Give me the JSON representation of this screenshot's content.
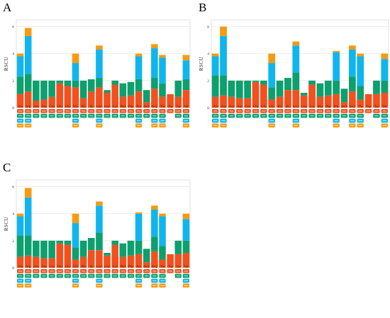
{
  "figure": {
    "colors": {
      "orange": "#f49b13",
      "cyan": "#10b5ee",
      "green": "#0e9f6e",
      "red": "#f2501e",
      "grid": "#e3e3e3",
      "background": "#ffffff"
    }
  },
  "chart_data": [
    {
      "type": "bar",
      "panel": "A",
      "ylabel": "RSCU",
      "ylim": [
        0,
        6.5
      ],
      "yticks": [
        0,
        2,
        4,
        6
      ],
      "grid": true,
      "stacked": true,
      "categories": [
        "Ala",
        "Arg",
        "Asn",
        "Asp",
        "Cys",
        "Gln",
        "Glu",
        "Gly",
        "His",
        "Ile",
        "Leu1",
        "Leu2",
        "Lys",
        "Met",
        "Phe",
        "Pro",
        "Ser1",
        "Ser2",
        "Thr",
        "Trp",
        "Tyr",
        "Val"
      ],
      "series": [
        {
          "color": "red",
          "values": [
            1.0,
            1.2,
            0.5,
            0.6,
            0.8,
            1.8,
            1.6,
            1.5,
            0.7,
            1.2,
            1.5,
            1.1,
            1.7,
            0.8,
            0.9,
            1.2,
            0.4,
            1.4,
            0.8,
            1.0,
            0.8,
            1.3
          ]
        },
        {
          "color": "green",
          "values": [
            1.3,
            1.3,
            1.5,
            1.4,
            1.2,
            0.2,
            0.4,
            0.5,
            1.3,
            0.9,
            0.7,
            0.2,
            0.3,
            1.0,
            1.0,
            0.9,
            0.9,
            0.8,
            1.0,
            0.0,
            1.2,
            0.8
          ]
        },
        {
          "color": "cyan",
          "values": [
            1.5,
            2.8,
            0.0,
            0.0,
            0.0,
            0.0,
            0.0,
            1.3,
            0.0,
            0.0,
            2.1,
            0.0,
            0.0,
            0.0,
            0.0,
            1.7,
            0.0,
            2.2,
            1.9,
            0.0,
            0.0,
            1.4
          ]
        },
        {
          "color": "orange",
          "values": [
            0.2,
            0.6,
            0.0,
            0.0,
            0.0,
            0.0,
            0.0,
            0.7,
            0.0,
            0.0,
            0.3,
            0.0,
            0.0,
            0.0,
            0.0,
            0.2,
            0.0,
            0.3,
            0.2,
            0.0,
            0.0,
            0.4
          ]
        }
      ]
    },
    {
      "type": "bar",
      "panel": "B",
      "ylabel": "RSCU",
      "ylim": [
        0,
        6.5
      ],
      "yticks": [
        0,
        2,
        4,
        6
      ],
      "grid": true,
      "stacked": true,
      "categories": [
        "Ala",
        "Arg",
        "Asn",
        "Asp",
        "Cys",
        "Gln",
        "Glu",
        "Gly",
        "His",
        "Ile",
        "Leu1",
        "Leu2",
        "Lys",
        "Met",
        "Phe",
        "Pro",
        "Ser1",
        "Ser2",
        "Thr",
        "Trp",
        "Tyr",
        "Val"
      ],
      "series": [
        {
          "color": "red",
          "values": [
            0.8,
            0.9,
            0.8,
            0.7,
            0.7,
            1.9,
            1.7,
            0.6,
            0.8,
            1.3,
            1.3,
            0.9,
            1.7,
            0.8,
            0.9,
            1.0,
            0.4,
            1.2,
            0.6,
            1.0,
            1.0,
            1.1
          ]
        },
        {
          "color": "green",
          "values": [
            1.6,
            1.5,
            1.2,
            1.3,
            1.3,
            0.1,
            0.3,
            0.9,
            1.2,
            0.9,
            1.3,
            0.2,
            0.3,
            1.0,
            1.1,
            1.0,
            1.0,
            1.1,
            1.0,
            0.0,
            1.0,
            0.9
          ]
        },
        {
          "color": "cyan",
          "values": [
            1.4,
            2.9,
            0.0,
            0.0,
            0.0,
            0.0,
            0.0,
            1.8,
            0.0,
            0.0,
            2.0,
            0.0,
            0.0,
            0.0,
            0.0,
            2.1,
            0.0,
            2.0,
            2.2,
            0.0,
            0.0,
            1.6
          ]
        },
        {
          "color": "orange",
          "values": [
            0.2,
            0.7,
            0.0,
            0.0,
            0.0,
            0.0,
            0.0,
            0.7,
            0.0,
            0.0,
            0.3,
            0.0,
            0.0,
            0.0,
            0.0,
            0.1,
            0.0,
            0.3,
            0.2,
            0.0,
            0.0,
            0.4
          ]
        }
      ]
    },
    {
      "type": "bar",
      "panel": "C",
      "ylabel": "RSCU",
      "ylim": [
        0,
        6.5
      ],
      "yticks": [
        0,
        2,
        4,
        6
      ],
      "grid": true,
      "stacked": true,
      "categories": [
        "Ala",
        "Arg",
        "Asn",
        "Asp",
        "Cys",
        "Gln",
        "Glu",
        "Gly",
        "His",
        "Ile",
        "Leu1",
        "Leu2",
        "Lys",
        "Met",
        "Phe",
        "Pro",
        "Ser1",
        "Ser2",
        "Thr",
        "Trp",
        "Tyr",
        "Val"
      ],
      "series": [
        {
          "color": "red",
          "values": [
            0.8,
            0.9,
            0.8,
            0.7,
            0.7,
            1.8,
            1.7,
            0.6,
            0.8,
            1.3,
            1.3,
            0.9,
            1.7,
            0.8,
            0.9,
            1.0,
            0.4,
            1.2,
            0.6,
            1.0,
            1.0,
            1.1
          ]
        },
        {
          "color": "green",
          "values": [
            1.6,
            1.5,
            1.2,
            1.3,
            1.3,
            0.2,
            0.3,
            0.9,
            1.2,
            0.9,
            1.3,
            0.2,
            0.3,
            1.0,
            1.1,
            1.0,
            1.0,
            1.1,
            1.0,
            0.0,
            1.0,
            0.9
          ]
        },
        {
          "color": "cyan",
          "values": [
            1.4,
            2.8,
            0.0,
            0.0,
            0.0,
            0.0,
            0.0,
            1.8,
            0.0,
            0.0,
            2.0,
            0.0,
            0.0,
            0.0,
            0.0,
            2.0,
            0.0,
            2.0,
            2.2,
            0.0,
            0.0,
            1.6
          ]
        },
        {
          "color": "orange",
          "values": [
            0.2,
            0.7,
            0.0,
            0.0,
            0.0,
            0.0,
            0.0,
            0.7,
            0.0,
            0.0,
            0.3,
            0.0,
            0.0,
            0.0,
            0.0,
            0.1,
            0.0,
            0.3,
            0.2,
            0.0,
            0.0,
            0.4
          ]
        }
      ]
    }
  ]
}
